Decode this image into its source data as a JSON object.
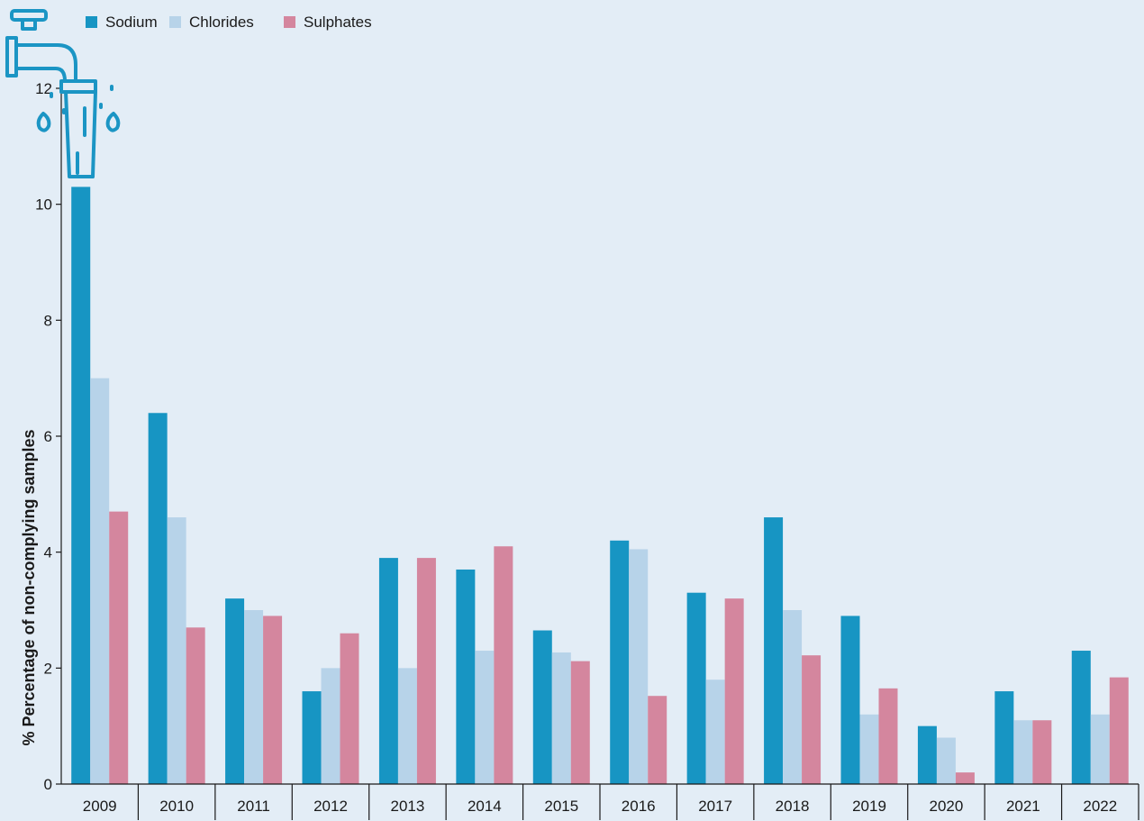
{
  "colors": {
    "background": "#e3edf6",
    "axis": "#1a1a1a",
    "tap_icon": "#1b95c4"
  },
  "icon": "water-tap-icon",
  "chart_data": {
    "type": "bar",
    "title": "",
    "xlabel": "",
    "ylabel": "% Percentage of non-complying samples",
    "ylim": [
      0,
      12
    ],
    "yticks": [
      0,
      2,
      4,
      6,
      8,
      10,
      12
    ],
    "grid": false,
    "legend_position": "top-left",
    "categories": [
      "2009",
      "2010",
      "2011",
      "2012",
      "2013",
      "2014",
      "2015",
      "2016",
      "2017",
      "2018",
      "2019",
      "2020",
      "2021",
      "2022"
    ],
    "series": [
      {
        "name": "Sodium",
        "color": "#1795c3",
        "values": [
          10.3,
          6.4,
          3.2,
          1.6,
          3.9,
          3.7,
          2.65,
          4.2,
          3.3,
          4.6,
          2.9,
          1.0,
          1.6,
          2.3
        ]
      },
      {
        "name": "Chlorides",
        "color": "#b7d3e9",
        "values": [
          7.0,
          4.6,
          3.0,
          2.0,
          2.0,
          2.3,
          2.27,
          4.05,
          1.8,
          3.0,
          1.2,
          0.8,
          1.1,
          1.2
        ]
      },
      {
        "name": "Sulphates",
        "color": "#d4869e",
        "values": [
          4.7,
          2.7,
          2.9,
          2.6,
          3.9,
          4.1,
          2.12,
          1.52,
          3.2,
          2.22,
          1.65,
          0.2,
          1.1,
          1.84
        ]
      }
    ]
  }
}
